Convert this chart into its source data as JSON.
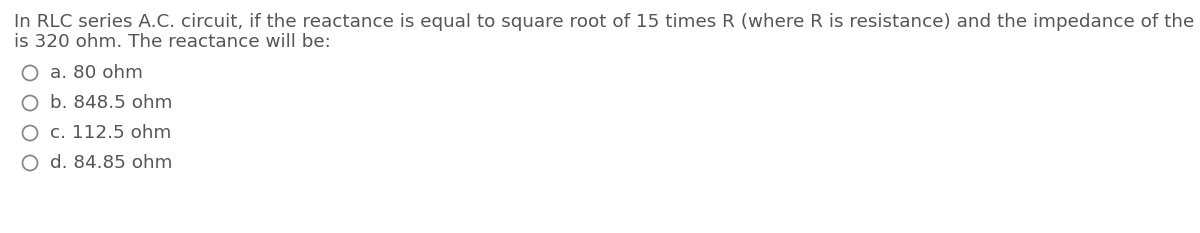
{
  "question_line1": "In RLC series A.C. circuit, if the reactance is equal to square root of 15 times R (where R is resistance) and the impedance of the circuit",
  "question_line2": "is 320 ohm. The reactance will be:",
  "options": [
    "a. 80 ohm",
    "b. 848.5 ohm",
    "c. 112.5 ohm",
    "d. 84.85 ohm"
  ],
  "text_color": "#555555",
  "background_color": "#ffffff",
  "font_size_question": 13.2,
  "font_size_options": 13.2,
  "circle_color": "#888888",
  "circle_linewidth": 1.3
}
